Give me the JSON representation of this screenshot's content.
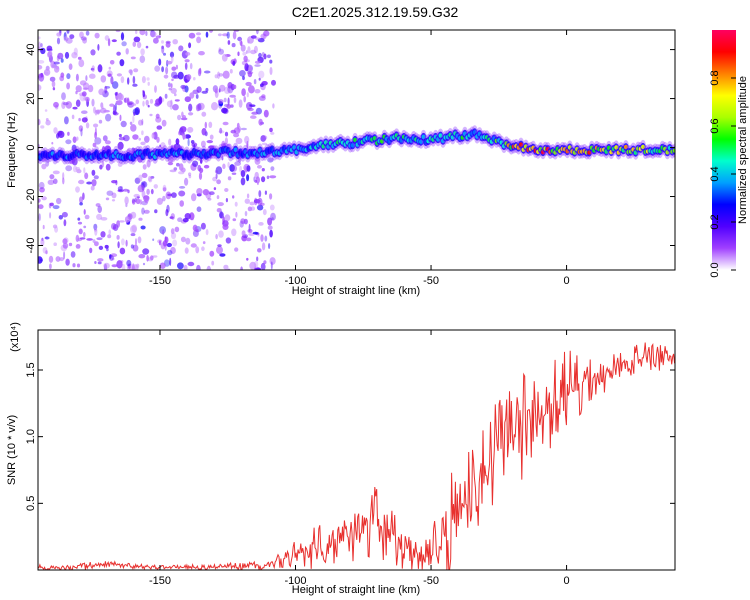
{
  "title": "C2E1.2025.312.19.59.G32",
  "chart_data": [
    {
      "type": "heatmap",
      "xlabel": "Height of straight line (km)",
      "ylabel": "Frequency (Hz)",
      "xlim": [
        -195,
        40
      ],
      "ylim": [
        -50,
        48
      ],
      "xticks": [
        -150,
        -100,
        -50,
        0
      ],
      "yticks": [
        -40,
        -20,
        0,
        20,
        40
      ],
      "colorbar": {
        "label": "Normalized spectral amplitude",
        "range": [
          0,
          1
        ],
        "ticks": [
          0.0,
          0.2,
          0.4,
          0.6,
          0.8
        ],
        "tick_labels": [
          "0.0",
          "0.2",
          "0.4",
          "0.6",
          "0.8"
        ],
        "colors": [
          "#ffffff",
          "#a040ff",
          "#5000ff",
          "#0000ff",
          "#00a0ff",
          "#00ffcc",
          "#00ff00",
          "#aaff00",
          "#ffff00",
          "#ff8000",
          "#ff0000",
          "#ff0060"
        ]
      },
      "ridge": {
        "x": [
          -195,
          -150,
          -130,
          -110,
          -100,
          -90,
          -70,
          -60,
          -50,
          -40,
          -30,
          -25,
          -20,
          -10,
          0,
          10,
          20,
          30,
          40
        ],
        "freq": [
          -3,
          -3,
          -2,
          -2,
          -1,
          1,
          3,
          4,
          3,
          5,
          5,
          2,
          1,
          -1,
          -1,
          -1,
          -1,
          -1,
          -1
        ],
        "peak_amplitude": [
          0.35,
          0.4,
          0.35,
          0.4,
          0.45,
          0.5,
          0.55,
          0.5,
          0.5,
          0.55,
          0.5,
          0.6,
          0.85,
          0.9,
          0.9,
          0.85,
          0.8,
          0.7,
          0.6
        ]
      },
      "noise_region_x": [
        -195,
        -108
      ]
    },
    {
      "type": "line",
      "xlabel": "Height of straight line (km)",
      "ylabel": "SNR (10 * v/v)",
      "y_multiplier": "(x10⁴)",
      "xlim": [
        -195,
        40
      ],
      "ylim": [
        0,
        1.8
      ],
      "xticks": [
        -150,
        -100,
        -50,
        0
      ],
      "yticks": [
        0.5,
        1.0,
        1.5
      ],
      "ytick_labels": [
        "0.5",
        "1.0",
        "1.5"
      ],
      "series": [
        {
          "color": "#e8302e",
          "x": [
            -195,
            -180,
            -170,
            -160,
            -150,
            -140,
            -130,
            -120,
            -110,
            -100,
            -95,
            -90,
            -85,
            -80,
            -75,
            -70,
            -65,
            -60,
            -55,
            -50,
            -45,
            -40,
            -35,
            -30,
            -25,
            -20,
            -15,
            -10,
            -5,
            0,
            5,
            10,
            15,
            20,
            25,
            30,
            35,
            40
          ],
          "values": [
            0.02,
            0.02,
            0.05,
            0.03,
            0.02,
            0.02,
            0.02,
            0.03,
            0.04,
            0.12,
            0.15,
            0.18,
            0.2,
            0.22,
            0.28,
            0.35,
            0.3,
            0.15,
            0.1,
            0.1,
            0.22,
            0.45,
            0.6,
            0.75,
            0.9,
            1.0,
            1.1,
            1.15,
            1.2,
            1.3,
            1.4,
            1.45,
            1.5,
            1.55,
            1.58,
            1.6,
            1.62,
            1.6
          ],
          "peak_envelope": [
            0.04,
            0.05,
            0.08,
            0.05,
            0.04,
            0.04,
            0.04,
            0.06,
            0.08,
            0.22,
            0.3,
            0.35,
            0.35,
            0.4,
            0.5,
            0.65,
            0.55,
            0.3,
            0.2,
            0.25,
            0.7,
            0.8,
            1.0,
            1.1,
            1.3,
            1.4,
            1.6,
            1.5,
            1.6,
            1.65,
            1.7,
            1.65,
            1.68,
            1.65,
            1.7,
            1.72,
            1.75,
            1.68
          ]
        }
      ]
    }
  ]
}
